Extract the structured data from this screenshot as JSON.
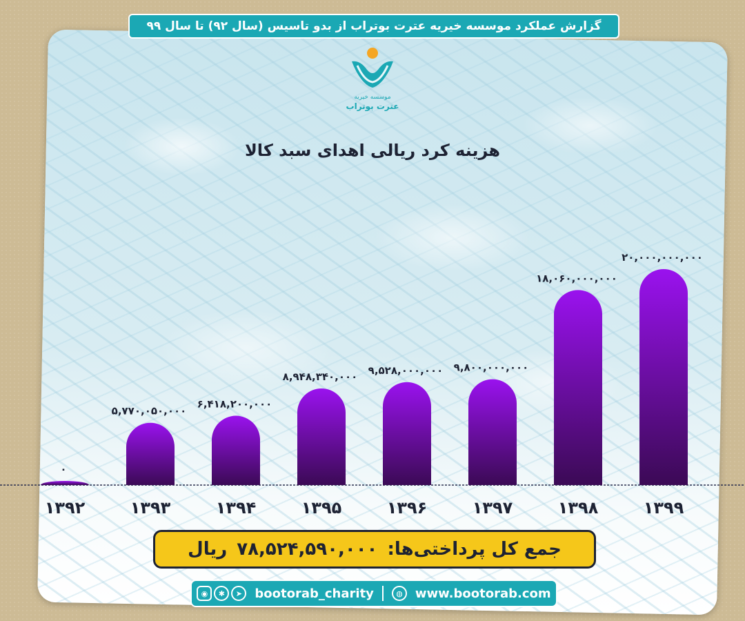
{
  "header": {
    "title": "گزارش عملکرد موسسه خیریه عترت بوتراب از بدو تاسیس (سال ۹۲) تا سال ۹۹"
  },
  "logo": {
    "text_line1": "موسسه خیریه",
    "text_line2": "عترت بوتراب"
  },
  "chart_data": {
    "type": "bar",
    "title": "هزینه کرد ریالی اهدای سبد کالا",
    "categories": [
      "۱۳۹۲",
      "۱۳۹۳",
      "۱۳۹۴",
      "۱۳۹۵",
      "۱۳۹۶",
      "۱۳۹۷",
      "۱۳۹۸",
      "۱۳۹۹"
    ],
    "values": [
      0,
      5770050000,
      6418200000,
      8948340000,
      9528000000,
      9800000000,
      18060000000,
      20000000000
    ],
    "labels": [
      "۰",
      "۵,۷۷۰,۰۵۰,۰۰۰",
      "۶,۴۱۸,۲۰۰,۰۰۰",
      "۸,۹۴۸,۳۴۰,۰۰۰",
      "۹,۵۲۸,۰۰۰,۰۰۰",
      "۹,۸۰۰,۰۰۰,۰۰۰",
      "۱۸,۰۶۰,۰۰۰,۰۰۰",
      "۲۰,۰۰۰,۰۰۰,۰۰۰"
    ],
    "xlabel": "",
    "ylabel": "",
    "ylim": [
      0,
      20000000000
    ],
    "grid": false,
    "colors": {
      "bar_top": "#9a12ee",
      "bar_bottom": "#3b0a55",
      "baseline": "#2b3050"
    }
  },
  "total": {
    "label": "جمع کل پرداختی‌ها:",
    "value": "۷۸,۵۲۴,۵۹۰,۰۰۰",
    "unit": "ریال"
  },
  "footer": {
    "handle": "bootorab_charity",
    "website": "www.bootorab.com"
  },
  "colors": {
    "background": "#cdbb95",
    "accent": "#1ba8b4",
    "total_box": "#f5c71a"
  }
}
